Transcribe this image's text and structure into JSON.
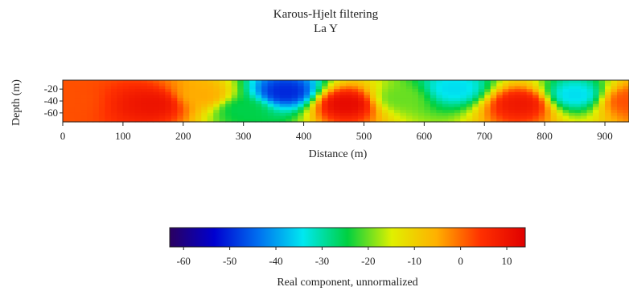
{
  "chart_data": {
    "type": "heatmap",
    "title": "Karous-Hjelt filtering",
    "subtitle": "La Y",
    "xlabel": "Distance (m)",
    "ylabel": "Depth (m)",
    "xlim": [
      0,
      940
    ],
    "ylim": [
      -75,
      -5
    ],
    "x_ticks": [
      0,
      100,
      200,
      300,
      400,
      500,
      600,
      700,
      800,
      900
    ],
    "y_ticks": [
      -20,
      -40,
      -60
    ],
    "grid": false,
    "colorbar": {
      "label": "Real component, unnormalized",
      "range": [
        -63,
        14
      ],
      "ticks": [
        -60,
        -50,
        -40,
        -30,
        -20,
        -10,
        0,
        10
      ],
      "colors": [
        "#2a0060",
        "#0000d0",
        "#0070f0",
        "#00e8f0",
        "#00d040",
        "#e0f000",
        "#ffb000",
        "#ff3000",
        "#e00000"
      ]
    },
    "anomalies": [
      {
        "distance": 0,
        "depth": -40,
        "value": 2
      },
      {
        "distance": 150,
        "depth": -45,
        "value": 10
      },
      {
        "distance": 230,
        "depth": -30,
        "value": -5
      },
      {
        "distance": 300,
        "depth": -55,
        "value": -25
      },
      {
        "distance": 370,
        "depth": -25,
        "value": -50
      },
      {
        "distance": 470,
        "depth": -45,
        "value": 12
      },
      {
        "distance": 560,
        "depth": -35,
        "value": -20
      },
      {
        "distance": 650,
        "depth": -20,
        "value": -35
      },
      {
        "distance": 760,
        "depth": -45,
        "value": 9
      },
      {
        "distance": 850,
        "depth": -30,
        "value": -35
      },
      {
        "distance": 940,
        "depth": -40,
        "value": 2
      }
    ]
  }
}
